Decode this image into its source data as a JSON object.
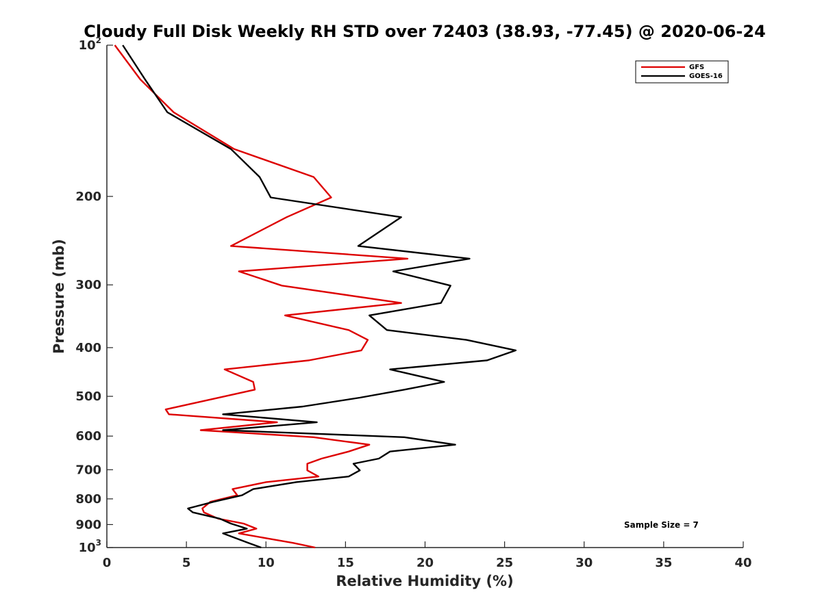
{
  "chart_data": {
    "type": "line",
    "title": "Cloudy Full Disk Weekly RH STD over 72403 (38.93, -77.45) @ 2020-06-24",
    "xlabel": "Relative Humidity (%)",
    "ylabel": "Pressure (mb)",
    "xlim": [
      0,
      40
    ],
    "ylim": [
      100,
      1000
    ],
    "yscale": "log",
    "y_reversed": true,
    "grid": false,
    "legend_position": "top-right",
    "x_ticks": [
      0,
      5,
      10,
      15,
      20,
      25,
      30,
      35,
      40
    ],
    "x_tick_labels": [
      "0",
      "5",
      "10",
      "15",
      "20",
      "25",
      "30",
      "35",
      "40"
    ],
    "y_ticks": [
      {
        "value": 100,
        "base": "10",
        "exp": "2"
      },
      {
        "value": 200,
        "base": "200",
        "exp": ""
      },
      {
        "value": 300,
        "base": "300",
        "exp": ""
      },
      {
        "value": 400,
        "base": "400",
        "exp": ""
      },
      {
        "value": 500,
        "base": "500",
        "exp": ""
      },
      {
        "value": 600,
        "base": "600",
        "exp": ""
      },
      {
        "value": 700,
        "base": "700",
        "exp": ""
      },
      {
        "value": 800,
        "base": "800",
        "exp": ""
      },
      {
        "value": 900,
        "base": "900",
        "exp": ""
      },
      {
        "value": 1000,
        "base": "10",
        "exp": "3"
      }
    ],
    "annotation": "Sample Size = 7",
    "series": [
      {
        "name": "GFS",
        "color": "#dd0000",
        "points": [
          [
            0.5,
            100
          ],
          [
            2.1,
            117
          ],
          [
            4.2,
            136
          ],
          [
            8.0,
            161
          ],
          [
            13.0,
            183
          ],
          [
            14.1,
            201
          ],
          [
            11.3,
            220
          ],
          [
            7.8,
            251
          ],
          [
            18.9,
            266
          ],
          [
            8.3,
            282
          ],
          [
            11.0,
            301
          ],
          [
            18.5,
            326
          ],
          [
            11.2,
            345
          ],
          [
            15.2,
            369
          ],
          [
            16.4,
            386
          ],
          [
            16.0,
            405
          ],
          [
            12.7,
            424
          ],
          [
            7.4,
            442
          ],
          [
            9.2,
            468
          ],
          [
            9.3,
            485
          ],
          [
            3.7,
            531
          ],
          [
            3.9,
            543
          ],
          [
            10.7,
            563
          ],
          [
            5.9,
            584
          ],
          [
            13.0,
            603
          ],
          [
            16.5,
            624
          ],
          [
            15.2,
            644
          ],
          [
            13.5,
            665
          ],
          [
            12.6,
            681
          ],
          [
            12.6,
            702
          ],
          [
            13.3,
            722
          ],
          [
            10.0,
            741
          ],
          [
            7.9,
            765
          ],
          [
            8.2,
            787
          ],
          [
            6.5,
            811
          ],
          [
            6.0,
            836
          ],
          [
            6.1,
            851
          ],
          [
            7.0,
            876
          ],
          [
            8.6,
            896
          ],
          [
            9.4,
            917
          ],
          [
            8.3,
            937
          ],
          [
            10.0,
            958
          ],
          [
            11.7,
            979
          ],
          [
            13.1,
            1000
          ]
        ]
      },
      {
        "name": "GOES-16",
        "color": "#000000",
        "points": [
          [
            1.0,
            100
          ],
          [
            2.4,
            117
          ],
          [
            3.8,
            136
          ],
          [
            7.8,
            161
          ],
          [
            9.6,
            183
          ],
          [
            10.3,
            201
          ],
          [
            18.5,
            220
          ],
          [
            15.8,
            251
          ],
          [
            22.8,
            266
          ],
          [
            18.0,
            282
          ],
          [
            21.6,
            301
          ],
          [
            21.0,
            326
          ],
          [
            16.5,
            345
          ],
          [
            17.6,
            369
          ],
          [
            22.6,
            386
          ],
          [
            25.7,
            405
          ],
          [
            23.9,
            424
          ],
          [
            17.8,
            442
          ],
          [
            21.2,
            468
          ],
          [
            18.7,
            485
          ],
          [
            15.9,
            503
          ],
          [
            12.3,
            524
          ],
          [
            7.3,
            543
          ],
          [
            13.2,
            563
          ],
          [
            7.3,
            584
          ],
          [
            18.7,
            603
          ],
          [
            21.9,
            624
          ],
          [
            17.8,
            644
          ],
          [
            17.1,
            665
          ],
          [
            15.5,
            681
          ],
          [
            15.9,
            702
          ],
          [
            15.2,
            722
          ],
          [
            11.9,
            741
          ],
          [
            9.2,
            765
          ],
          [
            8.5,
            787
          ],
          [
            6.7,
            811
          ],
          [
            5.1,
            836
          ],
          [
            5.4,
            851
          ],
          [
            7.1,
            876
          ],
          [
            7.8,
            896
          ],
          [
            8.8,
            917
          ],
          [
            7.3,
            937
          ],
          [
            8.1,
            958
          ],
          [
            8.9,
            979
          ],
          [
            9.7,
            1000
          ]
        ]
      }
    ]
  }
}
